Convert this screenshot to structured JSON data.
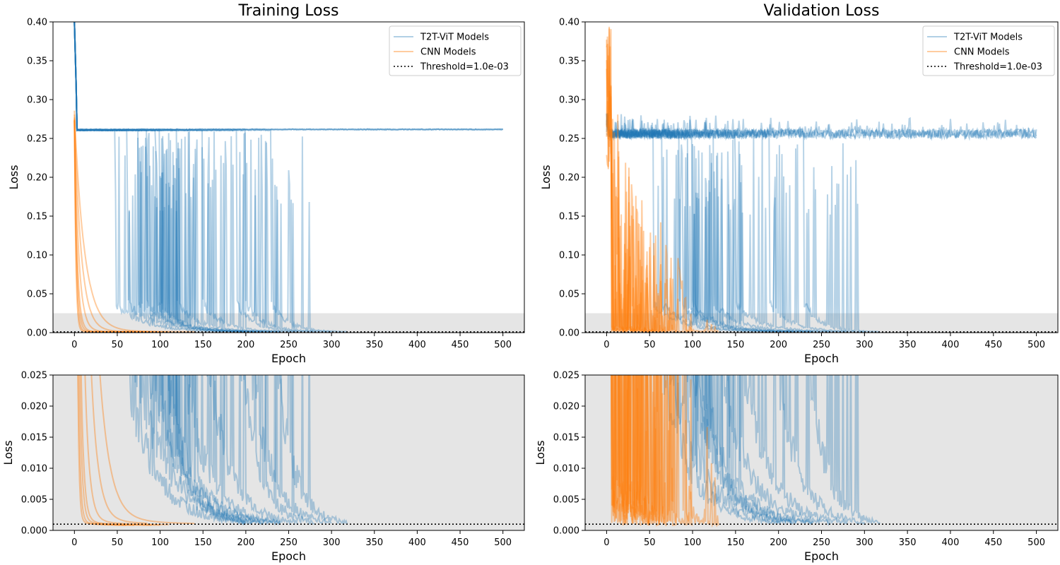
{
  "colors": {
    "t2t": "#1f77b4",
    "cnn": "#ff7f0e",
    "threshold": "#000000",
    "zoom_band": "#e5e5e5"
  },
  "legend": {
    "t2t_label": "T2T-ViT Models",
    "cnn_label": "CNN Models",
    "threshold_label": "Threshold=1.0e-03"
  },
  "chart_data": [
    {
      "type": "line",
      "title": "Training Loss",
      "xlabel": "Epoch",
      "ylabel": "Loss",
      "xlim": [
        -25,
        525
      ],
      "ylim": [
        0,
        0.4
      ],
      "xticks": [
        "0",
        "50",
        "100",
        "150",
        "200",
        "250",
        "300",
        "350",
        "400",
        "450",
        "500"
      ],
      "yticks": [
        "0.00",
        "0.05",
        "0.10",
        "0.15",
        "0.20",
        "0.25",
        "0.30",
        "0.35",
        "0.40"
      ],
      "zoom_band": [
        0,
        0.025
      ],
      "threshold": 0.001,
      "legend_position": "top-right",
      "series": [
        {
          "name": "T2T-ViT Models",
          "group": "t2t",
          "plateau": 0.261,
          "drop_epochs": [],
          "end": 500
        },
        {
          "group": "t2t",
          "plateau": 0.261,
          "drop_epochs": [],
          "end": 500
        },
        {
          "group": "t2t",
          "plateau": 0.261,
          "drop_epochs": [],
          "end": 500
        },
        {
          "group": "t2t",
          "plateau": 0.26,
          "drop_epochs": [
            48,
            60,
            70
          ],
          "end": 200
        },
        {
          "group": "t2t",
          "plateau": 0.26,
          "drop_epochs": [
            62,
            80,
            95
          ],
          "end": 220
        },
        {
          "group": "t2t",
          "plateau": 0.26,
          "drop_epochs": [
            75,
            88,
            105
          ],
          "end": 240
        },
        {
          "group": "t2t",
          "plateau": 0.26,
          "drop_epochs": [
            85,
            100,
            110
          ],
          "end": 210
        },
        {
          "group": "t2t",
          "plateau": 0.26,
          "drop_epochs": [
            95,
            108,
            120
          ],
          "end": 230
        },
        {
          "group": "t2t",
          "plateau": 0.26,
          "drop_epochs": [
            100,
            115,
            130
          ],
          "end": 200
        },
        {
          "group": "t2t",
          "plateau": 0.26,
          "drop_epochs": [
            120,
            135,
            150
          ],
          "end": 240
        },
        {
          "group": "t2t",
          "plateau": 0.26,
          "drop_epochs": [
            150,
            160,
            175
          ],
          "end": 260
        },
        {
          "group": "t2t",
          "plateau": 0.26,
          "drop_epochs": [
            190,
            200,
            210
          ],
          "end": 280
        },
        {
          "group": "t2t",
          "plateau": 0.26,
          "drop_epochs": [
            200,
            215,
            235
          ],
          "end": 300
        },
        {
          "group": "t2t",
          "plateau": 0.26,
          "drop_epochs": [
            230,
            245,
            250
          ],
          "end": 318
        },
        {
          "name": "CNN Models",
          "group": "cnn",
          "start": 0.27,
          "decay": 1.6,
          "end": 60
        },
        {
          "group": "cnn",
          "start": 0.27,
          "decay": 2.0,
          "end": 70
        },
        {
          "group": "cnn",
          "start": 0.27,
          "decay": 2.6,
          "end": 90
        },
        {
          "group": "cnn",
          "start": 0.27,
          "decay": 3.2,
          "end": 100
        },
        {
          "group": "cnn",
          "start": 0.27,
          "decay": 5.0,
          "end": 110
        },
        {
          "group": "cnn",
          "start": 0.27,
          "decay": 8.0,
          "end": 85
        },
        {
          "group": "cnn",
          "start": 0.27,
          "decay": 12.0,
          "end": 140
        }
      ]
    },
    {
      "type": "line",
      "title": "Validation Loss",
      "xlabel": "Epoch",
      "ylabel": "Loss",
      "xlim": [
        -25,
        525
      ],
      "ylim": [
        0,
        0.4
      ],
      "xticks": [
        "0",
        "50",
        "100",
        "150",
        "200",
        "250",
        "300",
        "350",
        "400",
        "450",
        "500"
      ],
      "yticks": [
        "0.00",
        "0.05",
        "0.10",
        "0.15",
        "0.20",
        "0.25",
        "0.30",
        "0.35",
        "0.40"
      ],
      "zoom_band": [
        0,
        0.025
      ],
      "threshold": 0.001,
      "legend_position": "top-right",
      "series": [
        {
          "name": "T2T-ViT Models",
          "group": "t2t",
          "plateau": 0.253,
          "drop_epochs": [],
          "end": 500
        },
        {
          "group": "t2t",
          "plateau": 0.253,
          "drop_epochs": [],
          "end": 500
        },
        {
          "group": "t2t",
          "plateau": 0.253,
          "drop_epochs": [],
          "end": 500
        },
        {
          "group": "t2t",
          "plateau": 0.253,
          "drop_epochs": [
            55,
            70,
            80
          ],
          "end": 200
        },
        {
          "group": "t2t",
          "plateau": 0.253,
          "drop_epochs": [
            65,
            80,
            95
          ],
          "end": 220
        },
        {
          "group": "t2t",
          "plateau": 0.253,
          "drop_epochs": [
            85,
            95,
            110
          ],
          "end": 240
        },
        {
          "group": "t2t",
          "plateau": 0.253,
          "drop_epochs": [
            95,
            105,
            120
          ],
          "end": 215
        },
        {
          "group": "t2t",
          "plateau": 0.253,
          "drop_epochs": [
            100,
            115,
            135
          ],
          "end": 240
        },
        {
          "group": "t2t",
          "plateau": 0.253,
          "drop_epochs": [
            125,
            140,
            150
          ],
          "end": 260
        },
        {
          "group": "t2t",
          "plateau": 0.253,
          "drop_epochs": [
            150,
            165,
            185
          ],
          "end": 280
        },
        {
          "group": "t2t",
          "plateau": 0.253,
          "drop_epochs": [
            190,
            205,
            225
          ],
          "end": 300
        },
        {
          "group": "t2t",
          "plateau": 0.253,
          "drop_epochs": [
            230,
            250,
            270
          ],
          "end": 318
        },
        {
          "name": "CNN Models",
          "group": "cnn",
          "start": 0.4,
          "noise": 0.3,
          "end": 40
        },
        {
          "group": "cnn",
          "start": 0.4,
          "noise": 0.3,
          "end": 50
        },
        {
          "group": "cnn",
          "start": 0.4,
          "noise": 0.35,
          "end": 60
        },
        {
          "group": "cnn",
          "start": 0.4,
          "noise": 0.35,
          "end": 70
        },
        {
          "group": "cnn",
          "start": 0.4,
          "noise": 0.35,
          "end": 80
        },
        {
          "group": "cnn",
          "start": 0.4,
          "noise": 0.3,
          "end": 100
        },
        {
          "group": "cnn",
          "start": 0.4,
          "noise": 0.3,
          "end": 130
        }
      ]
    },
    {
      "type": "line",
      "xlabel": "Epoch",
      "ylabel": "Loss",
      "xlim": [
        -25,
        525
      ],
      "ylim": [
        0,
        0.025
      ],
      "xticks": [
        "0",
        "50",
        "100",
        "150",
        "200",
        "250",
        "300",
        "350",
        "400",
        "450",
        "500"
      ],
      "yticks": [
        "0.000",
        "0.005",
        "0.010",
        "0.015",
        "0.020",
        "0.025"
      ],
      "threshold": 0.001,
      "zoom_of": 0
    },
    {
      "type": "line",
      "xlabel": "Epoch",
      "ylabel": "Loss",
      "xlim": [
        -25,
        525
      ],
      "ylim": [
        0,
        0.025
      ],
      "xticks": [
        "0",
        "50",
        "100",
        "150",
        "200",
        "250",
        "300",
        "350",
        "400",
        "450",
        "500"
      ],
      "yticks": [
        "0.000",
        "0.005",
        "0.010",
        "0.015",
        "0.020",
        "0.025"
      ],
      "threshold": 0.001,
      "zoom_of": 1
    }
  ]
}
